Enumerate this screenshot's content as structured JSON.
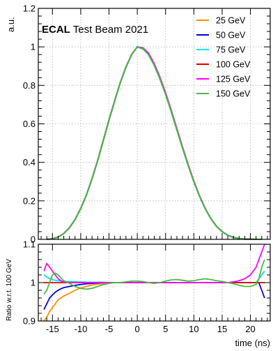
{
  "chart_data": [
    {
      "type": "line",
      "title": "",
      "annotation": {
        "bold": "ECAL",
        "rest": "Test Beam 2021"
      },
      "xlabel": "time (ns)",
      "ylabel": "a.u.",
      "xlim": [
        -17.5,
        23.5
      ],
      "ylim": [
        0,
        1.2
      ],
      "xticks": [
        -15,
        -10,
        -5,
        0,
        5,
        10,
        15,
        20
      ],
      "yticks": [
        0,
        0.2,
        0.4,
        0.6,
        0.8,
        1,
        1.2
      ],
      "ytick_labels": [
        "0",
        "0.2",
        "0.4",
        "0.6",
        "0.8",
        "1",
        "1.2"
      ],
      "grid": true,
      "legend_position": "top-right",
      "x": [
        -16,
        -15,
        -14,
        -13,
        -12,
        -11,
        -10,
        -9,
        -8,
        -7,
        -6,
        -5,
        -4,
        -3,
        -2,
        -1,
        0,
        1,
        2,
        3,
        4,
        5,
        6,
        7,
        8,
        9,
        10,
        11,
        12,
        13,
        14,
        15,
        16,
        17,
        18,
        19,
        20,
        21,
        22
      ],
      "series": [
        {
          "name": "25 GeV",
          "color": "#ff8c00",
          "values": [
            0.0,
            0.003,
            0.012,
            0.03,
            0.06,
            0.103,
            0.16,
            0.23,
            0.315,
            0.41,
            0.515,
            0.62,
            0.72,
            0.815,
            0.895,
            0.96,
            1.0,
            0.99,
            0.96,
            0.905,
            0.835,
            0.755,
            0.665,
            0.57,
            0.475,
            0.385,
            0.3,
            0.225,
            0.16,
            0.108,
            0.068,
            0.04,
            0.021,
            0.01,
            0.004,
            0.0015,
            0.0005,
            0.0001,
            0.0
          ]
        },
        {
          "name": "50 GeV",
          "color": "#0000dd",
          "values": [
            0.0,
            0.003,
            0.012,
            0.03,
            0.06,
            0.103,
            0.16,
            0.23,
            0.315,
            0.41,
            0.515,
            0.62,
            0.72,
            0.815,
            0.895,
            0.96,
            1.0,
            0.99,
            0.96,
            0.905,
            0.835,
            0.755,
            0.665,
            0.57,
            0.475,
            0.385,
            0.3,
            0.225,
            0.16,
            0.108,
            0.068,
            0.04,
            0.021,
            0.01,
            0.004,
            0.0015,
            0.0005,
            0.0001,
            0.0
          ]
        },
        {
          "name": "75 GeV",
          "color": "#00e5ee",
          "values": [
            0.0,
            0.003,
            0.012,
            0.03,
            0.06,
            0.103,
            0.16,
            0.23,
            0.315,
            0.41,
            0.515,
            0.62,
            0.72,
            0.815,
            0.895,
            0.96,
            1.0,
            0.99,
            0.96,
            0.905,
            0.835,
            0.755,
            0.665,
            0.57,
            0.475,
            0.385,
            0.3,
            0.225,
            0.16,
            0.108,
            0.068,
            0.04,
            0.021,
            0.01,
            0.004,
            0.0015,
            0.0005,
            0.0001,
            0.0
          ]
        },
        {
          "name": "100 GeV",
          "color": "#e00000",
          "values": [
            0.0,
            0.003,
            0.012,
            0.03,
            0.06,
            0.103,
            0.16,
            0.23,
            0.315,
            0.41,
            0.515,
            0.62,
            0.72,
            0.815,
            0.895,
            0.96,
            1.0,
            0.99,
            0.96,
            0.905,
            0.835,
            0.755,
            0.665,
            0.57,
            0.475,
            0.385,
            0.3,
            0.225,
            0.16,
            0.108,
            0.068,
            0.04,
            0.021,
            0.01,
            0.004,
            0.0015,
            0.0005,
            0.0001,
            0.0
          ]
        },
        {
          "name": "125 GeV",
          "color": "#ff00ff",
          "values": [
            0.0,
            0.003,
            0.012,
            0.03,
            0.06,
            0.103,
            0.16,
            0.23,
            0.315,
            0.41,
            0.515,
            0.62,
            0.72,
            0.815,
            0.895,
            0.96,
            1.0,
            0.995,
            0.967,
            0.913,
            0.843,
            0.762,
            0.672,
            0.576,
            0.48,
            0.389,
            0.303,
            0.227,
            0.161,
            0.108,
            0.068,
            0.04,
            0.021,
            0.01,
            0.004,
            0.0015,
            0.0005,
            0.0001,
            0.0
          ]
        },
        {
          "name": "150 GeV",
          "color": "#44bb44",
          "values": [
            0.0,
            0.003,
            0.012,
            0.03,
            0.06,
            0.103,
            0.16,
            0.23,
            0.315,
            0.41,
            0.515,
            0.62,
            0.72,
            0.815,
            0.895,
            0.96,
            1.0,
            0.99,
            0.96,
            0.905,
            0.835,
            0.755,
            0.665,
            0.57,
            0.475,
            0.385,
            0.3,
            0.225,
            0.16,
            0.108,
            0.068,
            0.04,
            0.021,
            0.01,
            0.004,
            0.0015,
            0.0005,
            0.0001,
            0.0
          ]
        }
      ]
    },
    {
      "type": "line",
      "title": "",
      "xlabel": "time (ns)",
      "ylabel": "Ratio w.r.t. 100 GeV",
      "xlim": [
        -17.5,
        23.5
      ],
      "ylim": [
        0.9,
        1.1
      ],
      "xticks": [
        -15,
        -10,
        -5,
        0,
        5,
        10,
        15,
        20
      ],
      "yticks": [
        0.9,
        1,
        1.1
      ],
      "ytick_labels": [
        "0.9",
        "1",
        "1.1"
      ],
      "grid": true,
      "x": [
        -16.5,
        -16,
        -15.5,
        -15,
        -14.5,
        -14,
        -13.5,
        -13,
        -12,
        -11,
        -10,
        -9,
        -8,
        -7,
        -6,
        -5,
        -4,
        -3,
        -2,
        -1,
        0,
        1,
        2,
        3,
        4,
        5,
        6,
        7,
        8,
        9,
        10,
        11,
        12,
        13,
        14,
        15,
        16,
        17,
        18,
        19,
        20,
        21,
        21.5,
        22,
        22.5
      ],
      "series": [
        {
          "name": "25 GeV",
          "color": "#ff8c00",
          "values": [
            0.9,
            0.91,
            0.925,
            0.935,
            0.945,
            0.955,
            0.96,
            0.965,
            0.972,
            0.98,
            0.986,
            0.99,
            0.994,
            0.996,
            0.998,
            0.999,
            1.0,
            1.0,
            1.0,
            1.0,
            1.0,
            1.0,
            1.0,
            1.0,
            1.0,
            1.0,
            1.0,
            1.0,
            1.0,
            1.0,
            1.0,
            1.0,
            1.0,
            1.0,
            1.0,
            1.0,
            1.0,
            1.0,
            1.0,
            1.0,
            1.0,
            1.0,
            1.01,
            1.02,
            1.03
          ]
        },
        {
          "name": "50 GeV",
          "color": "#0000dd",
          "values": [
            0.93,
            0.945,
            0.96,
            0.968,
            0.975,
            0.98,
            0.984,
            0.987,
            0.99,
            0.993,
            0.995,
            0.997,
            0.998,
            0.999,
            1.0,
            1.0,
            1.0,
            1.0,
            1.0,
            1.0,
            1.0,
            1.0,
            1.0,
            1.0,
            1.0,
            1.0,
            1.0,
            1.0,
            1.0,
            1.0,
            1.0,
            1.0,
            1.0,
            1.0,
            1.0,
            1.0,
            1.0,
            1.0,
            1.0,
            1.0,
            1.0,
            1.0,
            1.0,
            0.98,
            0.96
          ]
        },
        {
          "name": "75 GeV",
          "color": "#00e5ee",
          "values": [
            1.02,
            1.015,
            1.01,
            1.008,
            1.006,
            1.005,
            1.004,
            1.003,
            1.003,
            1.002,
            1.002,
            1.001,
            1.001,
            1.001,
            1.001,
            1.0,
            1.0,
            1.0,
            1.0,
            1.0,
            1.0,
            1.0,
            1.0,
            1.0,
            1.0,
            1.0,
            1.0,
            1.0,
            1.0,
            1.0,
            1.0,
            1.0,
            1.0,
            1.0,
            1.0,
            1.0,
            1.0,
            1.0,
            1.0,
            1.0,
            1.0,
            1.0,
            1.01,
            1.02,
            1.03
          ]
        },
        {
          "name": "100 GeV",
          "color": "#e00000",
          "values": [
            1,
            1,
            1,
            1,
            1,
            1,
            1,
            1,
            1,
            1,
            1,
            1,
            1,
            1,
            1,
            1,
            1,
            1,
            1,
            1,
            1,
            1,
            1,
            1,
            1,
            1,
            1,
            1,
            1,
            1,
            1,
            1,
            1,
            1,
            1,
            1,
            1,
            1,
            1,
            1,
            1,
            1,
            1,
            1,
            1
          ]
        },
        {
          "name": "125 GeV",
          "color": "#ff00ff",
          "values": [
            1.03,
            1.05,
            1.04,
            1.03,
            1.02,
            1.01,
            1.005,
            1.002,
            1.0,
            1.0,
            1.0,
            1.0,
            1.0,
            1.0,
            1.0,
            1.0,
            1.0,
            1.0,
            1.0,
            1.0,
            1.0,
            1.0,
            1.0,
            1.0,
            1.0,
            1.0,
            1.0,
            1.0,
            1.0,
            1.0,
            1.0,
            1.0,
            1.0,
            1.0,
            1.0,
            1.0,
            1.0,
            1.002,
            1.005,
            1.01,
            1.02,
            1.04,
            1.06,
            1.08,
            1.1
          ]
        },
        {
          "name": "150 GeV",
          "color": "#44bb44",
          "values": [
            0.97,
            0.98,
            1.0,
            1.02,
            1.025,
            1.02,
            1.012,
            1.005,
            0.998,
            0.99,
            0.985,
            0.983,
            0.985,
            0.99,
            0.995,
            0.998,
            1.0,
            1.0,
            1.002,
            1.004,
            1.004,
            1.003,
            1.0,
            0.998,
            1.0,
            1.004,
            1.007,
            1.008,
            1.006,
            1.004,
            1.005,
            1.008,
            1.01,
            1.008,
            1.005,
            1.003,
            1.0,
            0.997,
            0.993,
            0.99,
            0.99,
            0.995,
            1.01,
            1.04,
            1.06
          ]
        }
      ]
    }
  ]
}
